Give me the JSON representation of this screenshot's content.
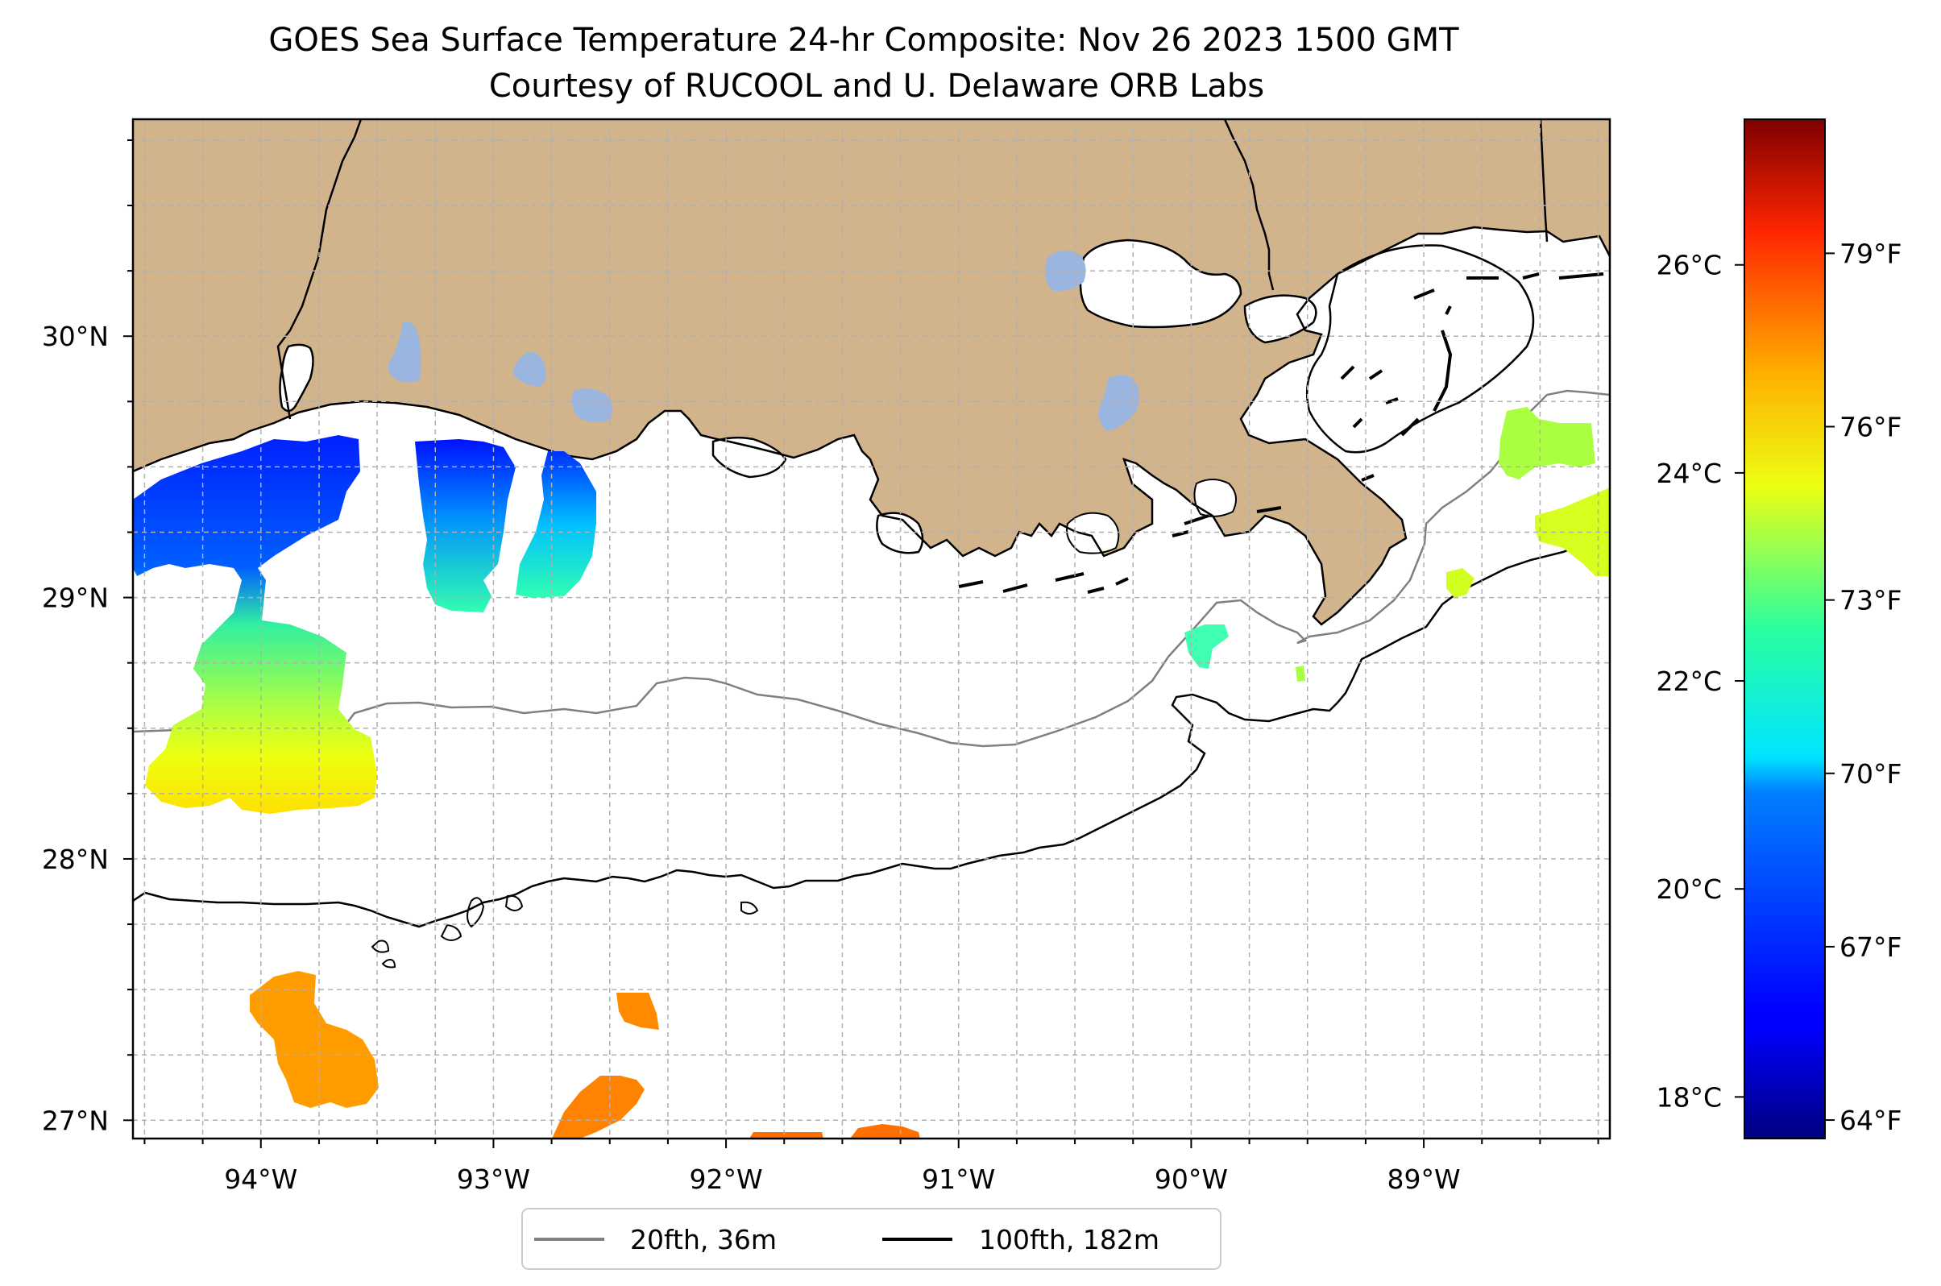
{
  "map": {
    "title": "GOES Sea Surface Temperature 24-hr Composite: Nov 26 2023 1500 GMT",
    "subtitle": "Courtesy of RUCOOL and U. Delaware ORB Labs",
    "lon_range": [
      -94.55,
      -88.2
    ],
    "lat_range": [
      26.93,
      30.83
    ],
    "lon_ticks": [
      {
        "value": -94,
        "label": "94°W"
      },
      {
        "value": -93,
        "label": "93°W"
      },
      {
        "value": -92,
        "label": "92°W"
      },
      {
        "value": -91,
        "label": "91°W"
      },
      {
        "value": -90,
        "label": "90°W"
      },
      {
        "value": -89,
        "label": "89°W"
      }
    ],
    "lat_ticks": [
      {
        "value": 27,
        "label": "27°N"
      },
      {
        "value": 28,
        "label": "28°N"
      },
      {
        "value": 29,
        "label": "29°N"
      },
      {
        "value": 30,
        "label": "30°N"
      }
    ],
    "gridlines": true,
    "colors": {
      "land": "#d2b48c",
      "water_inland": "#9ab6e0",
      "ocean": "#ffffff",
      "isobath_20fth": "#808080",
      "isobath_100fth": "#000000"
    },
    "legend": {
      "placement": "bottom-center",
      "items": [
        {
          "label": "20fth, 36m",
          "color": "#808080"
        },
        {
          "label": "100fth, 182m",
          "color": "#000000"
        }
      ]
    }
  },
  "colorbar": {
    "colormap": "jet",
    "celsius_range": [
      17.6,
      27.4
    ],
    "celsius_ticks": [
      {
        "value": 18,
        "label": "18°C"
      },
      {
        "value": 20,
        "label": "20°C"
      },
      {
        "value": 22,
        "label": "22°C"
      },
      {
        "value": 24,
        "label": "24°C"
      },
      {
        "value": 26,
        "label": "26°C"
      }
    ],
    "fahrenheit_ticks": [
      {
        "value": 64,
        "label": "64°F"
      },
      {
        "value": 67,
        "label": "67°F"
      },
      {
        "value": 70,
        "label": "70°F"
      },
      {
        "value": 73,
        "label": "73°F"
      },
      {
        "value": 76,
        "label": "76°F"
      },
      {
        "value": 79,
        "label": "79°F"
      }
    ]
  }
}
